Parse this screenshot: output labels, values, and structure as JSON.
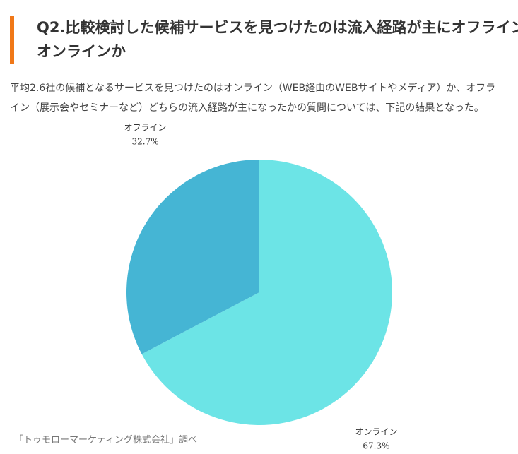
{
  "heading": "Q2.比較検討した候補サービスを見つけたのは流入経路が主にオフライン/オンラインか",
  "body_text": "平均2.6社の候補となるサービスを見つけたのはオンライン（WEB経由のWEBサイトやメディア）か、オフライン（展示会やセミナーなど）どちらの流入経路が主になったかの質問については、下記の結果となった。",
  "source_note": "「トゥモローマーケティング株式会社」調べ",
  "chart_data": {
    "type": "pie",
    "title": "",
    "slices": [
      {
        "label": "オンライン",
        "value": 67.3,
        "display": "67.3%",
        "color": "#6ce4e6"
      },
      {
        "label": "オフライン",
        "value": 32.7,
        "display": "32.7%",
        "color": "#45b5d4"
      }
    ]
  }
}
